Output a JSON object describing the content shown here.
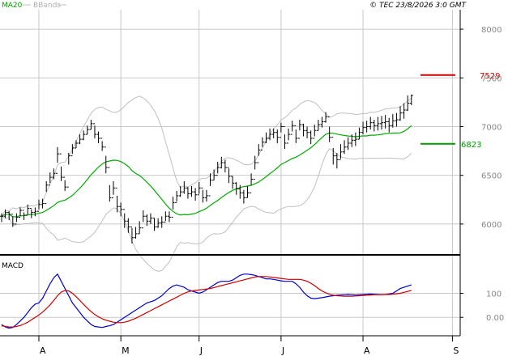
{
  "header": {
    "legend_ma": "MA20",
    "legend_bb": "BBands",
    "copyright": "© TEC 23/8/2026 3:0 GMT"
  },
  "colors": {
    "background": "#ffffff",
    "grid": "#c8c8c8",
    "price_bars": "#000000",
    "ma": "#00aa00",
    "bbands": "#c0c0c0",
    "resistance": "#cc0000",
    "support": "#009900",
    "macd": "#0000cc",
    "signal": "#cc0000",
    "axis_text": "#888888"
  },
  "chart_data": [
    {
      "type": "ohlc",
      "name": "price",
      "ylim": [
        5700,
        8200
      ],
      "y_ticks": [
        6000,
        6500,
        7000,
        7500,
        8000
      ],
      "y_tick_labels": [
        "6000",
        "6500",
        "7000",
        "7500",
        "8000"
      ],
      "x_month_labels": [
        "A",
        "M",
        "J",
        "J",
        "A",
        "S"
      ],
      "x_month_starts": [
        10,
        32,
        53,
        75,
        97,
        121
      ],
      "x_range": [
        0,
        122
      ],
      "close": [
        6080,
        6120,
        6100,
        6000,
        6070,
        6140,
        6090,
        6160,
        6120,
        6130,
        6200,
        6210,
        6400,
        6480,
        6520,
        6720,
        6480,
        6380,
        6700,
        6780,
        6830,
        6870,
        6920,
        6970,
        7030,
        6920,
        6880,
        6790,
        6580,
        6270,
        6370,
        6180,
        6150,
        6030,
        5970,
        5860,
        5900,
        5960,
        6080,
        6030,
        6060,
        5970,
        6010,
        6020,
        6080,
        6070,
        6220,
        6290,
        6330,
        6370,
        6310,
        6330,
        6300,
        6370,
        6270,
        6290,
        6450,
        6500,
        6580,
        6630,
        6580,
        6490,
        6420,
        6360,
        6320,
        6270,
        6320,
        6460,
        6630,
        6760,
        6840,
        6880,
        6920,
        6940,
        6890,
        7000,
        6830,
        6920,
        7010,
        6880,
        7020,
        6960,
        6940,
        6880,
        6960,
        7020,
        7050,
        7100,
        6890,
        6700,
        6660,
        6740,
        6790,
        6830,
        6860,
        6870,
        6940,
        6990,
        7000,
        7040,
        7010,
        7030,
        7040,
        7050,
        7010,
        7060,
        7070,
        7140,
        7170,
        7240,
        7320
      ],
      "high": [
        6110,
        6150,
        6130,
        6080,
        6110,
        6170,
        6120,
        6200,
        6150,
        6170,
        6250,
        6260,
        6440,
        6530,
        6570,
        6790,
        6590,
        6450,
        6730,
        6820,
        6860,
        6920,
        6960,
        7010,
        7070,
        7010,
        6950,
        6850,
        6700,
        6400,
        6440,
        6290,
        6220,
        6110,
        6060,
        5960,
        5970,
        6030,
        6140,
        6100,
        6110,
        6060,
        6060,
        6080,
        6130,
        6130,
        6280,
        6340,
        6390,
        6440,
        6380,
        6390,
        6370,
        6430,
        6350,
        6350,
        6520,
        6560,
        6640,
        6690,
        6660,
        6570,
        6490,
        6430,
        6400,
        6350,
        6390,
        6520,
        6700,
        6820,
        6890,
        6940,
        6980,
        6980,
        6970,
        7040,
        6920,
        6980,
        7060,
        6970,
        7070,
        7030,
        7000,
        6960,
        7020,
        7070,
        7100,
        7150,
        7000,
        6780,
        6730,
        6820,
        6860,
        6890,
        6920,
        6940,
        6990,
        7050,
        7060,
        7100,
        7070,
        7100,
        7110,
        7120,
        7090,
        7130,
        7140,
        7210,
        7240,
        7320,
        7330
      ],
      "low": [
        6020,
        6060,
        6040,
        5970,
        6020,
        6080,
        6040,
        6100,
        6060,
        6080,
        6150,
        6160,
        6330,
        6420,
        6460,
        6630,
        6440,
        6340,
        6610,
        6720,
        6780,
        6820,
        6860,
        6920,
        6970,
        6880,
        6830,
        6750,
        6520,
        6230,
        6300,
        6120,
        6080,
        5960,
        5910,
        5800,
        5850,
        5900,
        6020,
        5980,
        6000,
        5930,
        5960,
        5960,
        6030,
        6020,
        6150,
        6230,
        6280,
        6310,
        6260,
        6280,
        6240,
        6310,
        6220,
        6230,
        6390,
        6450,
        6520,
        6570,
        6530,
        6420,
        6360,
        6300,
        6260,
        6210,
        6270,
        6400,
        6560,
        6700,
        6790,
        6830,
        6860,
        6880,
        6830,
        6940,
        6770,
        6860,
        6950,
        6830,
        6960,
        6900,
        6880,
        6820,
        6900,
        6960,
        6990,
        7040,
        6840,
        6610,
        6570,
        6670,
        6720,
        6760,
        6790,
        6800,
        6870,
        6920,
        6940,
        6970,
        6950,
        6960,
        6970,
        6980,
        6940,
        6990,
        7000,
        7060,
        7080,
        7160,
        7220
      ],
      "support_level": 6823,
      "support_label": "6823",
      "resistance_level": 7529,
      "resistance_label": "7529"
    },
    {
      "type": "line",
      "name": "MACD",
      "title": "MACD",
      "ylim": [
        -70,
        250
      ],
      "y_ticks": [
        0,
        100
      ],
      "y_tick_labels": [
        "0.00",
        "100"
      ],
      "series": [
        {
          "key": "macd",
          "values": [
            -30,
            -40,
            -45,
            -42,
            -30,
            -15,
            0,
            20,
            40,
            55,
            60,
            80,
            110,
            140,
            165,
            180,
            150,
            120,
            90,
            60,
            40,
            20,
            0,
            -15,
            -30,
            -38,
            -40,
            -42,
            -38,
            -35,
            -30,
            -20,
            -10,
            0,
            10,
            20,
            30,
            40,
            50,
            60,
            65,
            70,
            80,
            90,
            105,
            120,
            130,
            135,
            130,
            125,
            115,
            110,
            105,
            100,
            105,
            115,
            125,
            135,
            145,
            150,
            150,
            150,
            155,
            165,
            175,
            180,
            180,
            178,
            175,
            170,
            165,
            160,
            160,
            158,
            155,
            152,
            150,
            150,
            150,
            140,
            125,
            105,
            90,
            80,
            78,
            80,
            82,
            85,
            88,
            90,
            92,
            93,
            94,
            95,
            94,
            93,
            94,
            95,
            96,
            97,
            96,
            95,
            94,
            95,
            97,
            100,
            110,
            120,
            125,
            130,
            135
          ]
        },
        {
          "key": "signal",
          "values": [
            -35,
            -38,
            -40,
            -40,
            -38,
            -34,
            -28,
            -20,
            -10,
            0,
            10,
            22,
            36,
            52,
            70,
            90,
            105,
            112,
            110,
            100,
            86,
            70,
            54,
            38,
            24,
            12,
            2,
            -6,
            -12,
            -16,
            -20,
            -22,
            -22,
            -20,
            -16,
            -10,
            -4,
            4,
            12,
            20,
            28,
            36,
            44,
            52,
            60,
            68,
            76,
            84,
            92,
            100,
            106,
            110,
            112,
            114,
            116,
            118,
            120,
            124,
            128,
            132,
            136,
            140,
            144,
            148,
            152,
            156,
            160,
            164,
            168,
            170,
            170,
            170,
            168,
            166,
            164,
            162,
            160,
            158,
            158,
            158,
            158,
            155,
            150,
            142,
            132,
            120,
            110,
            102,
            96,
            92,
            90,
            89,
            88,
            88,
            88,
            89,
            90,
            91,
            92,
            93,
            94,
            94,
            94,
            95,
            95,
            96,
            98,
            100,
            104,
            108,
            112
          ]
        }
      ]
    }
  ]
}
